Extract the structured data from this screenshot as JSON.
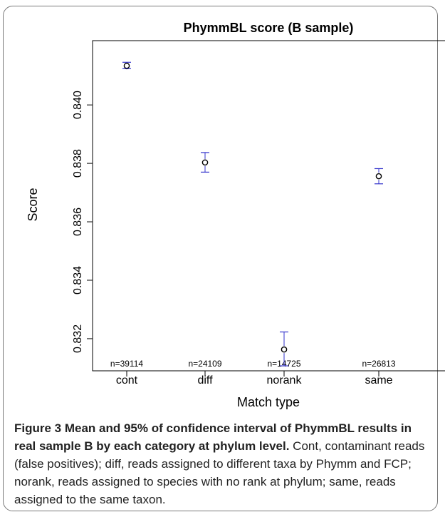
{
  "chart_data": {
    "type": "scatter",
    "title": "PhymmBL score (B sample)",
    "xlabel": "Match type",
    "ylabel": "Score",
    "categories": [
      "cont",
      "diff",
      "norank",
      "same"
    ],
    "counts": [
      "n=39114",
      "n=24109",
      "n=14725",
      "n=26813"
    ],
    "mean": [
      0.84134,
      0.83803,
      0.83163,
      0.83756
    ],
    "ci_low": [
      0.84124,
      0.8377,
      0.83107,
      0.8373
    ],
    "ci_high": [
      0.84146,
      0.83837,
      0.83223,
      0.83782
    ],
    "yticks": [
      0.832,
      0.834,
      0.836,
      0.838,
      0.84
    ],
    "ytick_labels": [
      "0.832",
      "0.834",
      "0.836",
      "0.838",
      "0.840"
    ],
    "ylim": [
      0.8309,
      0.8422
    ],
    "grid": false,
    "point_color": "#000000",
    "ci_color": "#3333cc"
  },
  "caption": {
    "label": "Figure 3 Mean and 95% of confidence interval of PhymmBL results in real sample B by each category at phylum level.",
    "text": " Cont, contaminant reads (false positives); diff, reads assigned to different taxa by Phymm and FCP; norank, reads assigned to species with no rank at phylum; same, reads assigned to the same taxon."
  }
}
